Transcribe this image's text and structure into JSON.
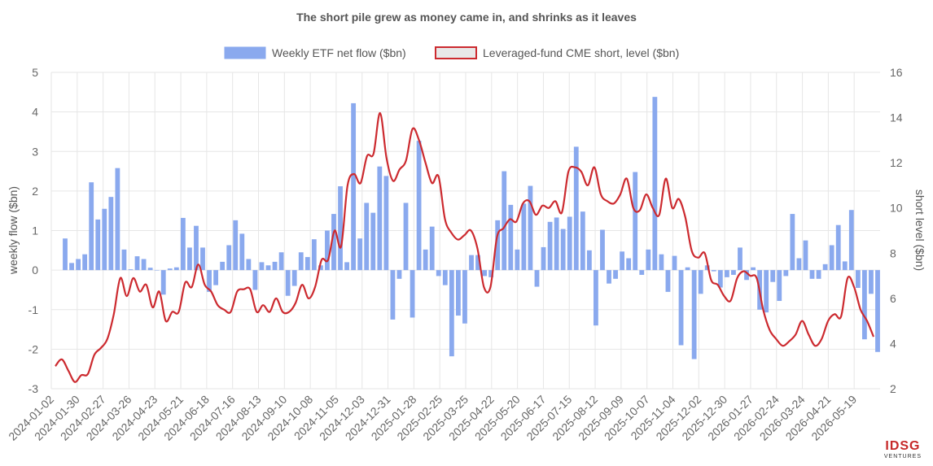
{
  "chart_data": {
    "type": "bar+line",
    "title": "The short pile grew as money came in, and shrinks as it leaves",
    "legend": {
      "placement": "top",
      "items": [
        {
          "label": "Weekly ETF net flow ($bn)",
          "color": "#8aa9ee",
          "border": "#8aa9ee"
        },
        {
          "label": "Leveraged-fund CME short, level ($bn)",
          "color": "#e8e8e8",
          "border": "#cc2a2f"
        }
      ]
    },
    "ylabel": "weekly flow ($bn)",
    "y2label": "short level ($bn)",
    "ylim": [
      -3,
      5
    ],
    "y2lim": [
      2,
      16
    ],
    "yticks": [
      "-3",
      "-2",
      "-1",
      "0",
      "1",
      "2",
      "3",
      "4",
      "5"
    ],
    "y2ticks": [
      "2",
      "4",
      "6",
      "8",
      "10",
      "12",
      "14",
      "16"
    ],
    "grid": true,
    "x_start": "2024-01-02",
    "x_end": "2026-06-16",
    "xticks": [
      "2024-01-02",
      "2024-01-30",
      "2024-02-27",
      "2024-03-26",
      "2024-04-23",
      "2024-05-21",
      "2024-06-18",
      "2024-07-16",
      "2024-08-13",
      "2024-09-10",
      "2024-10-08",
      "2024-11-05",
      "2024-12-03",
      "2024-12-31",
      "2025-01-28",
      "2025-02-25",
      "2025-03-25",
      "2025-04-22",
      "2025-05-20",
      "2025-06-17",
      "2025-07-15",
      "2025-08-12",
      "2025-09-09",
      "2025-10-07",
      "2025-11-04",
      "2025-12-02",
      "2025-12-30",
      "2026-01-27",
      "2026-02-24",
      "2026-03-24",
      "2026-04-21",
      "2026-05-19"
    ],
    "series": [
      {
        "name": "Weekly ETF net flow ($bn)",
        "kind": "bar",
        "axis": "left",
        "color": "#8aa9ee",
        "values": [
          0.8,
          0.18,
          0.28,
          0.4,
          2.22,
          1.28,
          1.55,
          1.85,
          2.58,
          0.52,
          0.02,
          0.35,
          0.28,
          0.06,
          0,
          -0.62,
          0.04,
          0.07,
          1.32,
          0.57,
          1.12,
          0.57,
          -0.55,
          -0.38,
          0.21,
          0.63,
          1.26,
          0.92,
          0.28,
          -0.5,
          0.2,
          0.12,
          0.21,
          0.45,
          -0.65,
          -0.4,
          0.45,
          0.33,
          0.78,
          0.12,
          1.0,
          1.42,
          2.12,
          0.2,
          4.22,
          0.8,
          1.7,
          1.45,
          2.62,
          2.38,
          -1.25,
          -0.22,
          1.7,
          -1.2,
          3.27,
          0.52,
          1.1,
          -0.15,
          -0.38,
          -2.18,
          -1.15,
          -1.35,
          0.38,
          0.38,
          -0.15,
          -0.18,
          1.26,
          2.5,
          1.65,
          0.52,
          1.68,
          2.13,
          -0.42,
          0.58,
          1.22,
          1.33,
          1.04,
          1.35,
          3.12,
          1.48,
          0.5,
          -1.4,
          1.02,
          -0.34,
          -0.22,
          0.47,
          0.3,
          2.48,
          -0.12,
          0.52,
          4.38,
          0.4,
          -0.55,
          0.36,
          -1.9,
          0.07,
          -2.25,
          -0.6,
          0.12,
          -0.03,
          -0.44,
          -0.18,
          -0.12,
          0.57,
          -0.25,
          0.07,
          -1.0,
          -1.07,
          -0.3,
          -0.78,
          -0.15,
          1.42,
          0.3,
          0.75,
          -0.22,
          -0.22,
          0.15,
          0.63,
          1.14,
          0.22,
          1.52,
          -0.45,
          -1.75,
          -0.6,
          -2.07
        ]
      },
      {
        "name": "Leveraged-fund CME short, level ($bn)",
        "kind": "line",
        "axis": "right",
        "color": "#cc2a2f",
        "values": [
          3.0,
          3.3,
          2.8,
          2.3,
          2.6,
          2.65,
          3.5,
          3.8,
          4.2,
          5.3,
          6.9,
          6.1,
          6.9,
          6.3,
          6.6,
          5.6,
          6.3,
          5.0,
          5.4,
          5.4,
          6.7,
          6.5,
          7.5,
          6.6,
          6.3,
          5.7,
          5.5,
          5.4,
          6.3,
          6.4,
          6.4,
          5.4,
          5.7,
          5.4,
          6.0,
          5.4,
          5.4,
          5.8,
          6.6,
          6.0,
          6.5,
          7.7,
          7.7,
          9.0,
          8.3,
          11.0,
          11.5,
          11.1,
          12.3,
          12.4,
          14.2,
          12.2,
          11.2,
          11.7,
          12.1,
          13.5,
          13.0,
          12.0,
          11.1,
          11.4,
          9.5,
          8.9,
          8.6,
          8.8,
          9.0,
          8.2,
          6.5,
          6.5,
          8.7,
          9.1,
          9.5,
          9.4,
          10.2,
          10.3,
          9.7,
          10.1,
          10.0,
          10.3,
          9.8,
          11.6,
          11.8,
          11.6,
          11.0,
          11.8,
          10.6,
          10.3,
          10.2,
          10.6,
          11.3,
          10.0,
          9.9,
          10.6,
          10.0,
          9.7,
          11.3,
          10.0,
          10.4,
          9.6,
          8.1,
          7.8,
          8.0,
          6.8,
          6.6,
          6.1,
          5.9,
          6.9,
          7.2,
          7.0,
          6.9,
          5.5,
          4.6,
          4.2,
          3.9,
          4.1,
          4.4,
          5.0,
          4.4,
          3.9,
          4.2,
          5.0,
          5.3,
          5.2,
          6.9,
          6.5,
          5.5,
          5.0,
          4.3
        ]
      }
    ]
  },
  "watermark": {
    "main": "IDSG",
    "sub": "VENTURES"
  }
}
